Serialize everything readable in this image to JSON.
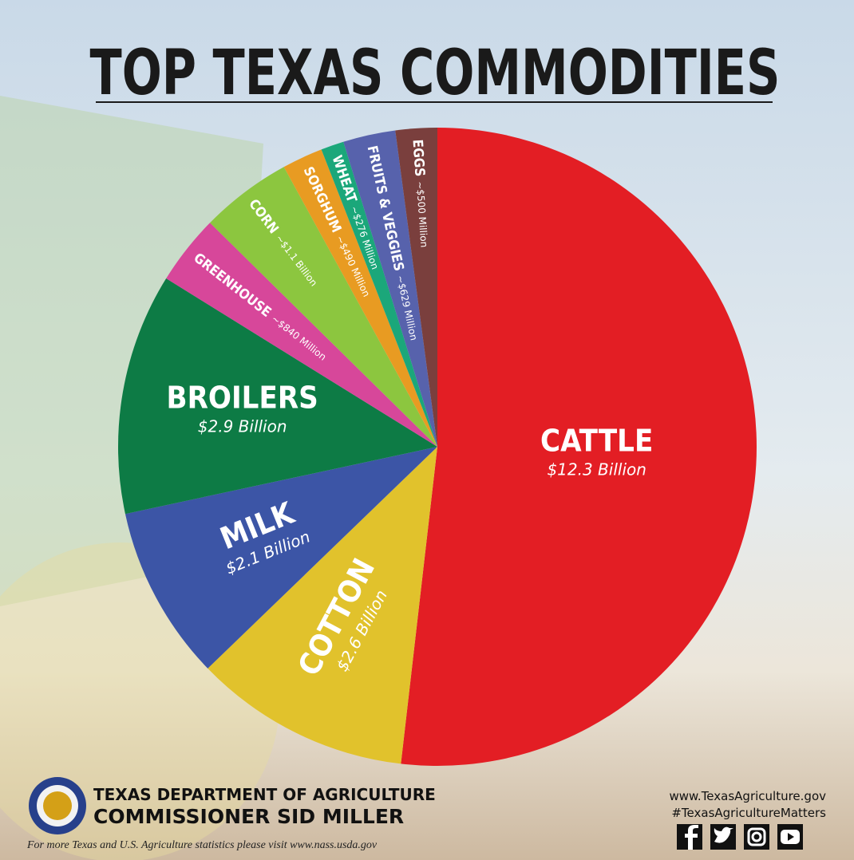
{
  "chart_data": {
    "type": "pie",
    "title": "TOP TEXAS COMMODITIES",
    "categories": [
      "CATTLE",
      "COTTON",
      "MILK",
      "BROILERS",
      "GREENHOUSE",
      "CORN",
      "SORGHUM",
      "WHEAT",
      "FRUITS & VEGGIES",
      "EGGS"
    ],
    "values": [
      12300,
      2600,
      2100,
      2900,
      840,
      1100,
      490,
      276,
      629,
      500
    ],
    "value_labels": [
      "$12.3 Billion",
      "$2.6 Billion",
      "$2.1 Billion",
      "$2.9 Billion",
      "~$840 Million",
      "~$1.1 Billion",
      "~$490 Million",
      "~$276 Million",
      "~$629 Million",
      "~$500 Million"
    ],
    "colors": [
      "#e31e24",
      "#e1c22c",
      "#3c55a6",
      "#0d7b45",
      "#d7479a",
      "#8cc63f",
      "#e89b22",
      "#1ba77a",
      "#5762ac",
      "#7a3f3d"
    ]
  },
  "footer": {
    "organization": "TEXAS DEPARTMENT OF AGRICULTURE",
    "commissioner": "COMMISSIONER SID MILLER",
    "note": "For more Texas and U.S. Agriculture statistics please visit www.nass.usda.gov",
    "website": "www.TexasAgriculture.gov",
    "hashtag": "#TexasAgricultureMatters"
  }
}
